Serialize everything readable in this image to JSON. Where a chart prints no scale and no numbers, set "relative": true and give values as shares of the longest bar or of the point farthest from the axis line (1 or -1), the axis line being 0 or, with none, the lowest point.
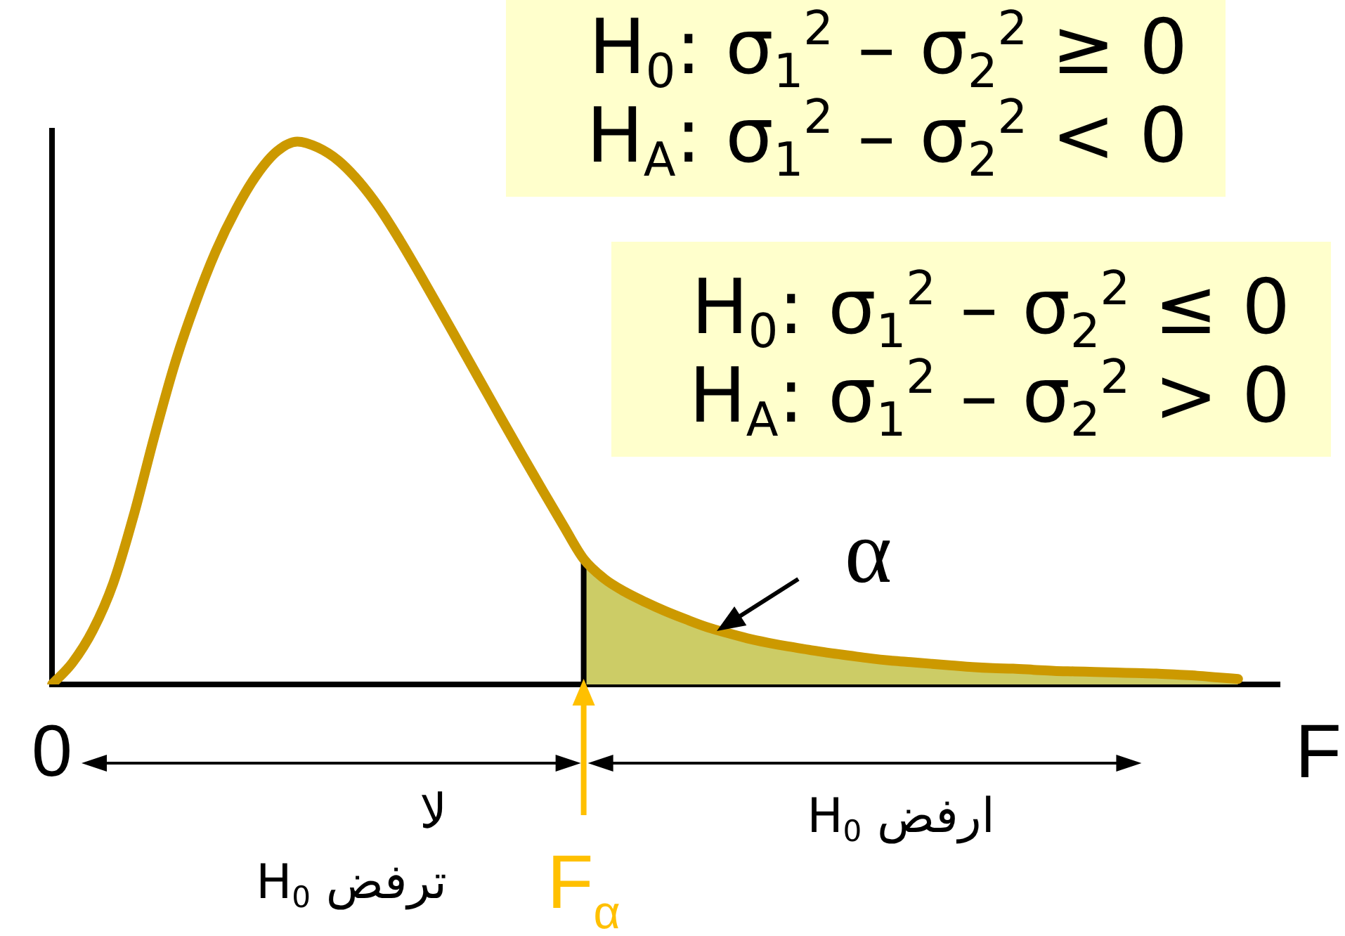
{
  "chart_data": {
    "type": "line",
    "relative": true,
    "categories": [
      "0",
      null,
      null,
      null,
      null,
      null,
      null,
      null,
      null,
      null,
      null,
      null,
      null,
      null,
      null,
      null,
      null,
      null,
      null,
      null,
      null,
      null,
      null,
      null,
      null,
      null,
      "F$_{α}$",
      null,
      null,
      null,
      null,
      null,
      null,
      null,
      null,
      null,
      null,
      null,
      null,
      null,
      null,
      null,
      null,
      null,
      null,
      null,
      null,
      null,
      null,
      null,
      null,
      null,
      null,
      null,
      null,
      null,
      null,
      null,
      null,
      null,
      null
    ],
    "series": [
      {
        "color": "#cc9900",
        "values": [
          0,
          0.04,
          0.1,
          0.187,
          0.312,
          0.456,
          0.59,
          0.701,
          0.797,
          0.875,
          0.938,
          0.982,
          1,
          0.989,
          0.965,
          0.927,
          0.878,
          0.819,
          0.755,
          0.689,
          0.622,
          0.555,
          0.488,
          0.422,
          0.357,
          0.293,
          0.231,
          0.195,
          0.171,
          0.152,
          0.135,
          0.12,
          0.106,
          0.095,
          0.085,
          0.077,
          0.07,
          0.064,
          0.058,
          0.053,
          0.048,
          0.044,
          0.041,
          0.038,
          0.035,
          0.032,
          0.03,
          0.029,
          0.027,
          0.025,
          0.024,
          0.023,
          0.022,
          0.021,
          0.02,
          0.018,
          0.016,
          0.013,
          0.01,
          null,
          null
        ]
      },
      {
        "type": "area",
        "color": "#cccc66",
        "values": [
          null,
          null,
          null,
          null,
          null,
          null,
          null,
          null,
          null,
          null,
          null,
          null,
          null,
          null,
          null,
          null,
          null,
          null,
          null,
          null,
          null,
          null,
          null,
          null,
          null,
          null,
          0.231,
          0.195,
          0.171,
          0.152,
          0.135,
          0.12,
          0.106,
          0.095,
          0.085,
          0.077,
          0.07,
          0.064,
          0.058,
          0.053,
          0.048,
          0.044,
          0.041,
          0.038,
          0.035,
          0.032,
          0.03,
          0.029,
          0.027,
          0.025,
          0.024,
          0.023,
          0.022,
          0.021,
          0.02,
          0.018,
          0.016,
          0.013,
          0.01,
          null,
          null
        ]
      }
    ],
    "xlabel": "F",
    "ref_lines": [
      {
        "axis": "x",
        "value": "F$_{α}$",
        "color": "#000000"
      }
    ],
    "annotations": [
      "H$_{0}$: σ$_{1}$$^{2}$ – σ$_{2}$$^{2}$ ≥ 0\nH$_{A}$: σ$_{1}$$^{2}$ – σ$_{2}$$^{2}$ < 0",
      "H$_{0}$: σ$_{1}$$^{2}$ – σ$_{2}$$^{2}$ ≤ 0\nH$_{A}$: σ$_{1}$$^{2}$ – σ$_{2}$$^{2}$ > 0",
      "α",
      "لا\nترفض H$_{0}$",
      "ارفض H$_{0}$"
    ]
  }
}
